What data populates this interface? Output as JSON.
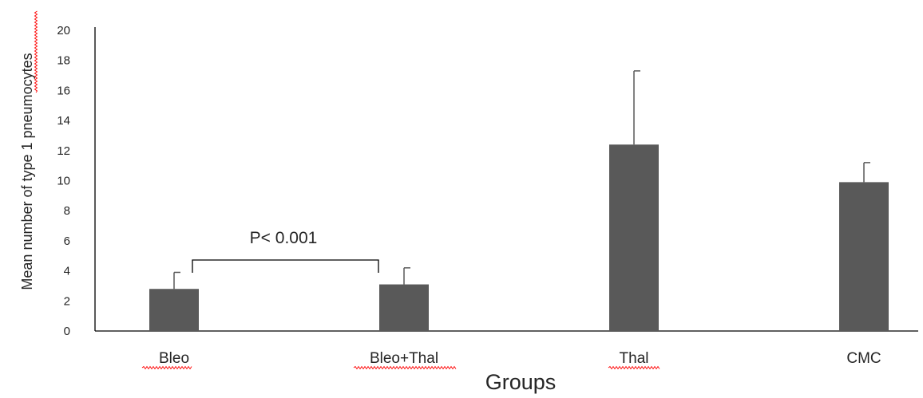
{
  "chart_data": {
    "type": "bar",
    "title": "",
    "xlabel": "Groups",
    "ylabel": "Mean number of type 1 pneumocytes",
    "categories": [
      "Bleo",
      "Bleo+Thal",
      "Thal",
      "CMC"
    ],
    "series": [
      {
        "values": [
          2.8,
          3.1,
          12.4,
          9.9
        ],
        "errors": [
          1.1,
          1.1,
          4.9,
          1.3
        ]
      }
    ],
    "ylim": [
      0,
      20
    ],
    "yticks": [
      "0",
      "2",
      "4",
      "6",
      "8",
      "10",
      "12",
      "14",
      "16",
      "18",
      "20"
    ],
    "grid": false,
    "annotation": {
      "text": "P< 0.001",
      "from": "Bleo",
      "to": "Bleo+Thal"
    },
    "colors": {
      "bar": "#595959",
      "axis": "#000000",
      "text": "#262626",
      "spellcheck": "#ff0000"
    },
    "spellcheck_underlined": [
      "Bleo",
      "Bleo+Thal",
      "Thal",
      "pneumocytes"
    ]
  }
}
